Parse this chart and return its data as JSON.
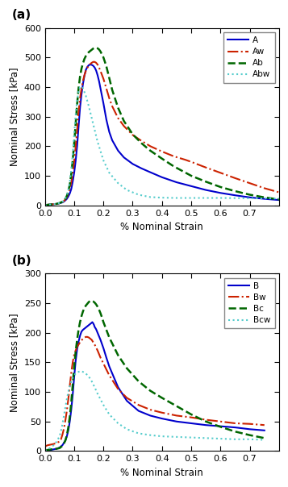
{
  "panel_a": {
    "title": "(a)",
    "ylabel": "Nominal Stress [kPa]",
    "xlabel": "% Nominal Strain",
    "ylim": [
      0,
      600
    ],
    "xlim": [
      0,
      0.8
    ],
    "yticks": [
      0,
      100,
      200,
      300,
      400,
      500,
      600
    ],
    "xticks": [
      0,
      0.1,
      0.2,
      0.3,
      0.4,
      0.5,
      0.6,
      0.7
    ],
    "series": {
      "A": {
        "color": "#0000CC",
        "linestyle": "solid",
        "linewidth": 1.5,
        "x": [
          0,
          0.01,
          0.02,
          0.03,
          0.04,
          0.05,
          0.06,
          0.065,
          0.07,
          0.075,
          0.08,
          0.085,
          0.09,
          0.095,
          0.1,
          0.105,
          0.11,
          0.115,
          0.12,
          0.125,
          0.13,
          0.135,
          0.14,
          0.145,
          0.15,
          0.155,
          0.16,
          0.165,
          0.17,
          0.175,
          0.18,
          0.185,
          0.19,
          0.2,
          0.21,
          0.22,
          0.23,
          0.25,
          0.27,
          0.3,
          0.33,
          0.36,
          0.4,
          0.45,
          0.5,
          0.55,
          0.6,
          0.65,
          0.7,
          0.75,
          0.8
        ],
        "y": [
          0,
          2,
          3,
          4,
          5,
          7,
          10,
          13,
          17,
          22,
          30,
          40,
          55,
          80,
          110,
          150,
          200,
          265,
          330,
          375,
          410,
          438,
          458,
          468,
          474,
          476,
          475,
          472,
          466,
          456,
          440,
          420,
          395,
          345,
          290,
          248,
          220,
          185,
          162,
          140,
          125,
          112,
          95,
          78,
          65,
          52,
          42,
          34,
          27,
          22,
          18
        ]
      },
      "Aw": {
        "color": "#CC2200",
        "linestyle": "dashdot",
        "linewidth": 1.5,
        "x": [
          0,
          0.01,
          0.02,
          0.03,
          0.04,
          0.05,
          0.06,
          0.065,
          0.07,
          0.075,
          0.08,
          0.085,
          0.09,
          0.095,
          0.1,
          0.105,
          0.11,
          0.115,
          0.12,
          0.125,
          0.13,
          0.135,
          0.14,
          0.145,
          0.15,
          0.155,
          0.16,
          0.165,
          0.17,
          0.175,
          0.18,
          0.185,
          0.19,
          0.2,
          0.21,
          0.22,
          0.23,
          0.25,
          0.27,
          0.3,
          0.33,
          0.36,
          0.4,
          0.44,
          0.48,
          0.5,
          0.55,
          0.6,
          0.65,
          0.7,
          0.75,
          0.8
        ],
        "y": [
          0,
          2,
          3,
          4,
          5,
          7,
          11,
          15,
          20,
          28,
          40,
          56,
          78,
          108,
          148,
          198,
          255,
          315,
          362,
          395,
          420,
          440,
          455,
          465,
          472,
          478,
          482,
          485,
          485,
          482,
          476,
          466,
          454,
          428,
          395,
          362,
          335,
          295,
          268,
          238,
          218,
          200,
          182,
          166,
          154,
          147,
          128,
          110,
          92,
          75,
          58,
          44
        ]
      },
      "Ab": {
        "color": "#006600",
        "linestyle": "dashed",
        "linewidth": 1.8,
        "x": [
          0,
          0.01,
          0.02,
          0.03,
          0.04,
          0.05,
          0.06,
          0.065,
          0.07,
          0.075,
          0.08,
          0.085,
          0.09,
          0.095,
          0.1,
          0.105,
          0.11,
          0.115,
          0.12,
          0.125,
          0.13,
          0.135,
          0.14,
          0.145,
          0.15,
          0.155,
          0.16,
          0.165,
          0.17,
          0.175,
          0.18,
          0.185,
          0.19,
          0.2,
          0.21,
          0.22,
          0.23,
          0.25,
          0.27,
          0.3,
          0.33,
          0.36,
          0.4,
          0.44,
          0.5,
          0.55,
          0.6,
          0.65,
          0.7,
          0.75,
          0.8
        ],
        "y": [
          0,
          2,
          3,
          4,
          5,
          8,
          12,
          16,
          22,
          32,
          48,
          70,
          105,
          152,
          210,
          275,
          342,
          395,
          435,
          462,
          480,
          495,
          505,
          512,
          518,
          522,
          526,
          530,
          532,
          533,
          531,
          527,
          520,
          500,
          470,
          430,
          390,
          330,
          285,
          240,
          210,
          185,
          158,
          132,
          100,
          80,
          62,
          48,
          36,
          27,
          20
        ]
      },
      "Abw": {
        "color": "#55CCCC",
        "linestyle": "dotted",
        "linewidth": 1.5,
        "x": [
          0,
          0.01,
          0.02,
          0.03,
          0.04,
          0.05,
          0.06,
          0.065,
          0.07,
          0.075,
          0.08,
          0.085,
          0.09,
          0.095,
          0.1,
          0.105,
          0.11,
          0.115,
          0.12,
          0.125,
          0.13,
          0.14,
          0.15,
          0.16,
          0.17,
          0.18,
          0.2,
          0.22,
          0.25,
          0.28,
          0.32,
          0.36,
          0.4,
          0.45,
          0.5,
          0.55,
          0.6,
          0.7,
          0.8
        ],
        "y": [
          0,
          2,
          3,
          4,
          5,
          8,
          12,
          17,
          24,
          34,
          52,
          80,
          120,
          172,
          240,
          305,
          355,
          385,
          400,
          402,
          396,
          370,
          335,
          295,
          255,
          215,
          152,
          110,
          75,
          52,
          36,
          28,
          26,
          25,
          25,
          25,
          25,
          24,
          23
        ]
      }
    },
    "legend_order": [
      "A",
      "Aw",
      "Ab",
      "Abw"
    ]
  },
  "panel_b": {
    "title": "(b)",
    "ylabel": "Nominal Stress [kPa]",
    "xlabel": "% Nominal Strain",
    "ylim": [
      0,
      300
    ],
    "xlim": [
      0,
      0.8
    ],
    "yticks": [
      0,
      50,
      100,
      150,
      200,
      250,
      300
    ],
    "xticks": [
      0,
      0.1,
      0.2,
      0.3,
      0.4,
      0.5,
      0.6,
      0.7
    ],
    "series": {
      "B": {
        "color": "#0000CC",
        "linestyle": "solid",
        "linewidth": 1.5,
        "x": [
          0,
          0.01,
          0.02,
          0.03,
          0.04,
          0.05,
          0.055,
          0.06,
          0.065,
          0.07,
          0.075,
          0.08,
          0.085,
          0.09,
          0.095,
          0.1,
          0.105,
          0.11,
          0.115,
          0.12,
          0.125,
          0.13,
          0.135,
          0.14,
          0.145,
          0.15,
          0.155,
          0.16,
          0.162,
          0.165,
          0.168,
          0.17,
          0.175,
          0.18,
          0.19,
          0.2,
          0.21,
          0.22,
          0.25,
          0.28,
          0.32,
          0.36,
          0.4,
          0.45,
          0.5,
          0.55,
          0.6,
          0.65,
          0.7,
          0.75
        ],
        "y": [
          0,
          1,
          2,
          3,
          4,
          6,
          8,
          10,
          14,
          18,
          25,
          35,
          50,
          70,
          95,
          125,
          152,
          172,
          185,
          195,
          202,
          205,
          207,
          209,
          211,
          213,
          215,
          217,
          218,
          216,
          213,
          210,
          206,
          200,
          188,
          174,
          158,
          143,
          108,
          85,
          68,
          60,
          55,
          50,
          47,
          44,
          42,
          40,
          37,
          35
        ]
      },
      "Bw": {
        "color": "#CC2200",
        "linestyle": "dashdot",
        "linewidth": 1.5,
        "x": [
          0,
          0.01,
          0.02,
          0.03,
          0.04,
          0.05,
          0.055,
          0.06,
          0.065,
          0.07,
          0.075,
          0.08,
          0.085,
          0.09,
          0.095,
          0.1,
          0.105,
          0.11,
          0.115,
          0.12,
          0.125,
          0.13,
          0.135,
          0.14,
          0.145,
          0.15,
          0.155,
          0.16,
          0.165,
          0.17,
          0.18,
          0.19,
          0.2,
          0.22,
          0.25,
          0.28,
          0.32,
          0.36,
          0.4,
          0.45,
          0.5,
          0.55,
          0.6,
          0.65,
          0.7,
          0.75
        ],
        "y": [
          8,
          10,
          11,
          12,
          14,
          16,
          20,
          28,
          38,
          52,
          68,
          88,
          110,
          132,
          150,
          163,
          170,
          176,
          180,
          184,
          187,
          190,
          192,
          193,
          193,
          192,
          190,
          188,
          184,
          180,
          170,
          158,
          148,
          128,
          105,
          90,
          78,
          70,
          65,
          60,
          57,
          53,
          50,
          47,
          46,
          44
        ]
      },
      "Bc": {
        "color": "#006600",
        "linestyle": "dashed",
        "linewidth": 1.8,
        "x": [
          0,
          0.01,
          0.02,
          0.03,
          0.04,
          0.05,
          0.055,
          0.06,
          0.065,
          0.07,
          0.075,
          0.08,
          0.085,
          0.09,
          0.095,
          0.1,
          0.105,
          0.11,
          0.115,
          0.12,
          0.125,
          0.13,
          0.135,
          0.14,
          0.145,
          0.15,
          0.155,
          0.16,
          0.165,
          0.17,
          0.175,
          0.18,
          0.185,
          0.19,
          0.195,
          0.2,
          0.21,
          0.22,
          0.25,
          0.28,
          0.32,
          0.36,
          0.4,
          0.45,
          0.5,
          0.55,
          0.6,
          0.65,
          0.7,
          0.75
        ],
        "y": [
          1,
          2,
          3,
          3,
          4,
          5,
          7,
          9,
          13,
          18,
          27,
          40,
          58,
          82,
          112,
          142,
          168,
          188,
          205,
          218,
          228,
          236,
          242,
          246,
          249,
          252,
          254,
          254,
          253,
          251,
          248,
          244,
          239,
          233,
          226,
          218,
          205,
          192,
          162,
          140,
          118,
          102,
          90,
          76,
          62,
          50,
          41,
          33,
          27,
          22
        ]
      },
      "Bcw": {
        "color": "#55CCCC",
        "linestyle": "dotted",
        "linewidth": 1.5,
        "x": [
          0,
          0.01,
          0.02,
          0.03,
          0.04,
          0.05,
          0.055,
          0.06,
          0.065,
          0.07,
          0.075,
          0.08,
          0.085,
          0.09,
          0.095,
          0.1,
          0.105,
          0.11,
          0.115,
          0.12,
          0.125,
          0.13,
          0.14,
          0.15,
          0.16,
          0.17,
          0.18,
          0.2,
          0.22,
          0.25,
          0.28,
          0.32,
          0.36,
          0.4,
          0.45,
          0.5,
          0.55,
          0.6,
          0.65,
          0.7,
          0.75
        ],
        "y": [
          1,
          3,
          6,
          10,
          16,
          25,
          34,
          46,
          60,
          74,
          88,
          100,
          110,
          118,
          124,
          128,
          131,
          133,
          134,
          135,
          135,
          134,
          131,
          126,
          118,
          108,
          97,
          78,
          62,
          47,
          37,
          30,
          27,
          25,
          24,
          23,
          22,
          21,
          20,
          20,
          19
        ]
      }
    },
    "legend_order": [
      "B",
      "Bw",
      "Bc",
      "Bcw"
    ]
  }
}
